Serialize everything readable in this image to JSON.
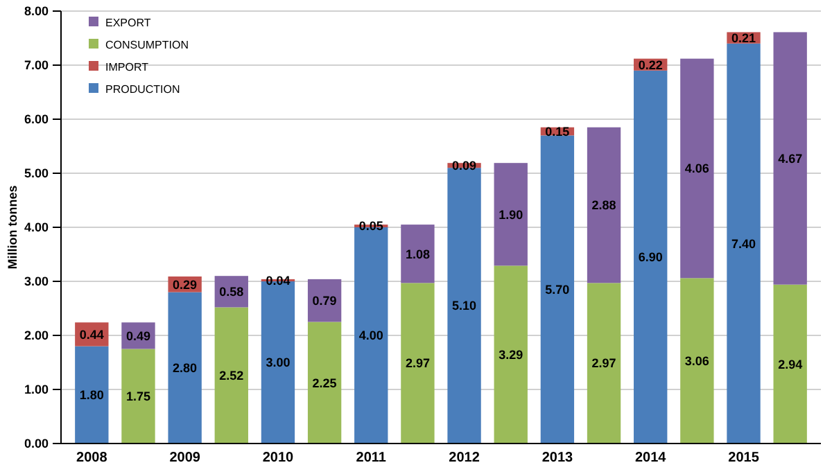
{
  "chart_data": {
    "type": "bar",
    "stacked": true,
    "ylabel": "Million tonnes",
    "categories": [
      "2008",
      null,
      "2009",
      null,
      "2010",
      null,
      "2011",
      null,
      "2012",
      null,
      "2013",
      null,
      "2014",
      null,
      "2015",
      null
    ],
    "series": [
      {
        "name": "PRODUCTION",
        "color": "#4a7ebb",
        "values": [
          1.8,
          null,
          2.8,
          null,
          3.0,
          null,
          4.0,
          null,
          5.1,
          null,
          5.7,
          null,
          6.9,
          null,
          7.4,
          null
        ],
        "value_labels": [
          "1.80",
          null,
          "2.80",
          null,
          "3.00",
          null,
          "4.00",
          null,
          "5.10",
          null,
          "5.70",
          null,
          "6.90",
          null,
          "7.40",
          null
        ]
      },
      {
        "name": "IMPORT",
        "color": "#c0504d",
        "values": [
          0.44,
          null,
          0.29,
          null,
          0.04,
          null,
          0.05,
          null,
          0.09,
          null,
          0.15,
          null,
          0.22,
          null,
          0.21,
          null
        ],
        "value_labels": [
          "0.44",
          null,
          "0.29",
          null,
          "0.04",
          null,
          "0.05",
          null,
          "0.09",
          null,
          "0.15",
          null,
          "0.22",
          null,
          "0.21",
          null
        ]
      },
      {
        "name": "CONSUMPTION",
        "color": "#9bbb59",
        "values": [
          null,
          1.75,
          null,
          2.52,
          null,
          2.25,
          null,
          2.97,
          null,
          3.29,
          null,
          2.97,
          null,
          3.06,
          null,
          2.94
        ],
        "value_labels": [
          null,
          "1.75",
          null,
          "2.52",
          null,
          "2.25",
          null,
          "2.97",
          null,
          "3.29",
          null,
          "2.97",
          null,
          "3.06",
          null,
          "2.94"
        ]
      },
      {
        "name": "EXPORT",
        "color": "#8064a2",
        "values": [
          null,
          0.49,
          null,
          0.58,
          null,
          0.79,
          null,
          1.08,
          null,
          1.9,
          null,
          2.88,
          null,
          4.06,
          null,
          4.67
        ],
        "value_labels": [
          null,
          "0.49",
          null,
          "0.58",
          null,
          "0.79",
          null,
          "1.08",
          null,
          "1.90",
          null,
          "2.88",
          null,
          "4.06",
          null,
          "4.67"
        ]
      }
    ],
    "ylim": [
      0,
      8
    ],
    "yticks": [
      {
        "value": 0,
        "label": "0.00"
      },
      {
        "value": 1,
        "label": "1.00"
      },
      {
        "value": 2,
        "label": "2.00"
      },
      {
        "value": 3,
        "label": "3.00"
      },
      {
        "value": 4,
        "label": "4.00"
      },
      {
        "value": 5,
        "label": "5.00"
      },
      {
        "value": 6,
        "label": "6.00"
      },
      {
        "value": 7,
        "label": "7.00"
      },
      {
        "value": 8,
        "label": "8.00"
      }
    ],
    "grid": "y",
    "legend": "top left"
  }
}
